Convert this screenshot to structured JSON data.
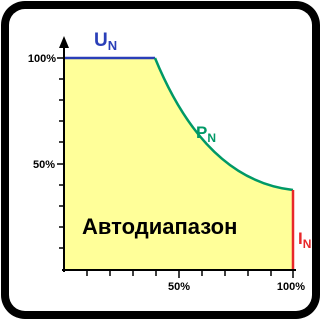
{
  "diagram": {
    "y_ticks": {
      "top": "100%",
      "middle": "50%"
    },
    "x_ticks": {
      "middle": "50%",
      "right": "100%"
    },
    "region_label": "Автодиапазон",
    "u_label": {
      "main": "U",
      "sub": "N"
    },
    "p_label": {
      "main": "P",
      "sub": "N"
    },
    "i_label": {
      "main": "I",
      "sub": "N"
    }
  },
  "colors": {
    "fill": "#ffff99",
    "voltage": "#2a3fb8",
    "power": "#009966",
    "current": "#e8282a",
    "axis": "#000000"
  }
}
